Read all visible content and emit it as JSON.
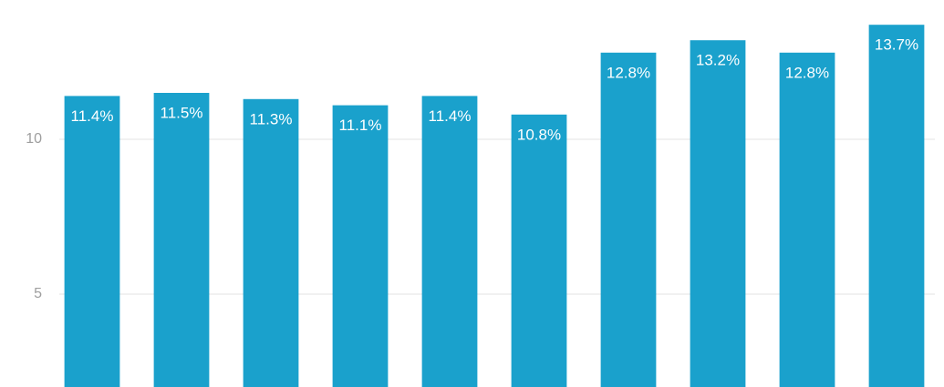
{
  "chart_data": {
    "type": "bar",
    "categories": [
      null,
      null,
      null,
      null,
      null,
      null,
      null,
      null,
      null,
      null
    ],
    "values": [
      11.4,
      11.5,
      11.3,
      11.1,
      11.4,
      10.8,
      12.8,
      13.2,
      12.8,
      13.7
    ],
    "value_labels": [
      "11.4%",
      "11.5%",
      "11.3%",
      "11.1%",
      "11.4%",
      "10.8%",
      "12.8%",
      "13.2%",
      "12.8%",
      "13.7%"
    ],
    "color": "#1aa1cc",
    "ylim": [
      2,
      14.5
    ],
    "yticks": [
      5,
      10
    ],
    "grid": true
  }
}
